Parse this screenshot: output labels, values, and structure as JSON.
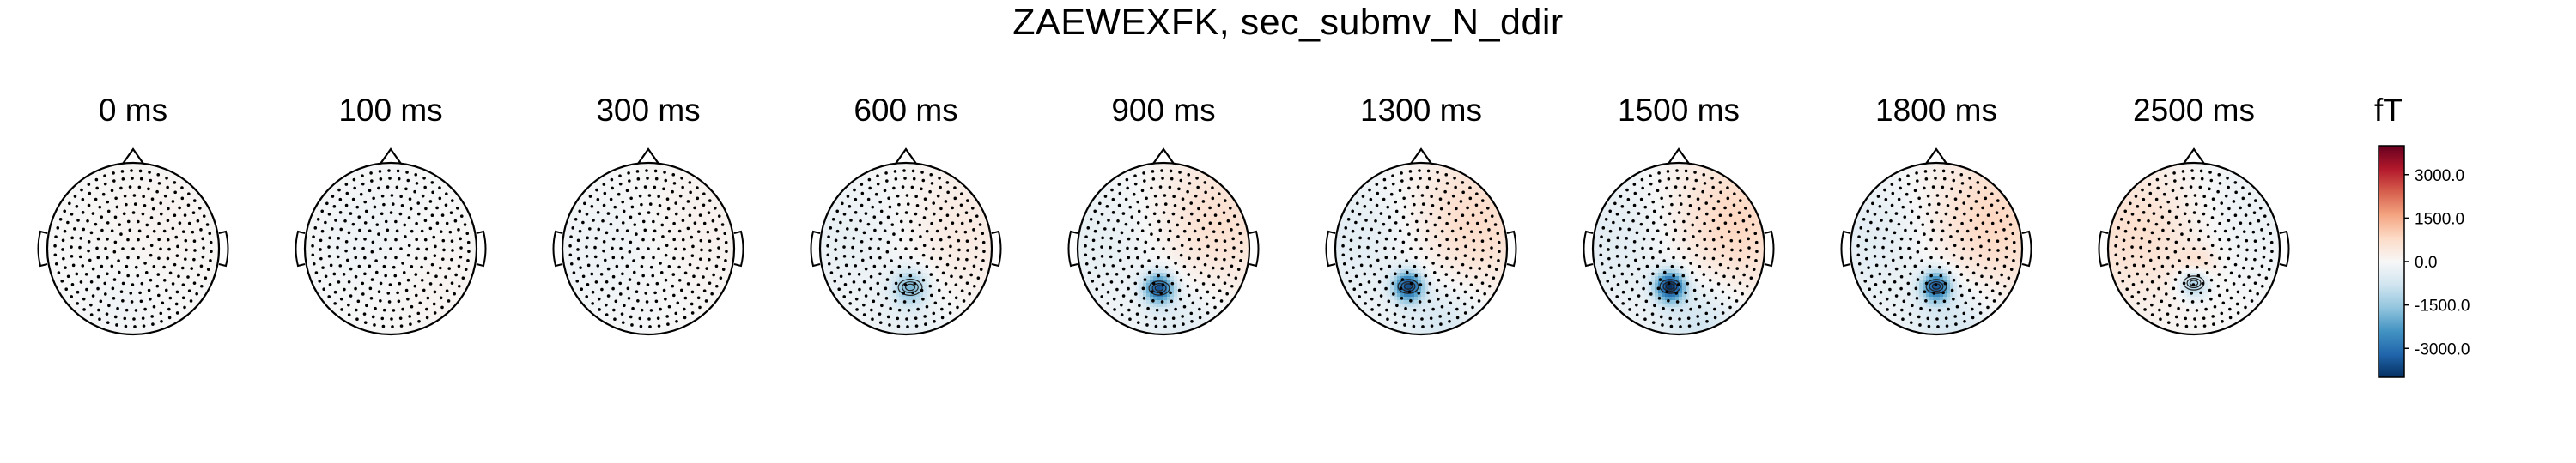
{
  "title": "ZAEWEXFK, sec_submv_N_ddir",
  "chart_data": {
    "type": "heatmap",
    "title": "ZAEWEXFK, sec_submv_N_ddir",
    "panels": [
      {
        "label": "0 ms",
        "time_ms": 0,
        "sources": [
          {
            "x": -0.15,
            "y": -0.6,
            "value": -150,
            "radius": 0.3
          },
          {
            "x": 0.3,
            "y": 0.3,
            "value": 120,
            "radius": 0.5
          }
        ]
      },
      {
        "label": "100 ms",
        "time_ms": 100,
        "sources": [
          {
            "x": -0.2,
            "y": 0.1,
            "value": -200,
            "radius": 0.5
          },
          {
            "x": 0.4,
            "y": -0.3,
            "value": 150,
            "radius": 0.5
          }
        ]
      },
      {
        "label": "300 ms",
        "time_ms": 300,
        "sources": [
          {
            "x": -0.3,
            "y": 0.0,
            "value": -250,
            "radius": 0.6
          },
          {
            "x": 0.45,
            "y": 0.2,
            "value": 250,
            "radius": 0.6
          }
        ]
      },
      {
        "label": "600 ms",
        "time_ms": 600,
        "sources": [
          {
            "x": 0.05,
            "y": -0.45,
            "value": -1700,
            "radius": 0.14
          },
          {
            "x": -0.55,
            "y": 0.1,
            "value": -350,
            "radius": 0.6
          },
          {
            "x": 0.55,
            "y": 0.2,
            "value": 400,
            "radius": 0.6
          },
          {
            "x": 0.1,
            "y": -0.9,
            "value": -350,
            "radius": 0.35
          }
        ]
      },
      {
        "label": "900 ms",
        "time_ms": 900,
        "sources": [
          {
            "x": -0.05,
            "y": -0.46,
            "value": -3300,
            "radius": 0.12
          },
          {
            "x": -0.55,
            "y": 0.1,
            "value": -400,
            "radius": 0.6
          },
          {
            "x": 0.55,
            "y": 0.3,
            "value": 700,
            "radius": 0.6
          },
          {
            "x": 0.2,
            "y": -0.85,
            "value": -500,
            "radius": 0.35
          }
        ]
      },
      {
        "label": "1300 ms",
        "time_ms": 1300,
        "sources": [
          {
            "x": -0.15,
            "y": -0.44,
            "value": -3400,
            "radius": 0.12
          },
          {
            "x": -0.6,
            "y": 0.1,
            "value": -500,
            "radius": 0.6
          },
          {
            "x": 0.55,
            "y": 0.3,
            "value": 800,
            "radius": 0.6
          },
          {
            "x": 0.25,
            "y": -0.85,
            "value": -700,
            "radius": 0.35
          }
        ]
      },
      {
        "label": "1500 ms",
        "time_ms": 1500,
        "sources": [
          {
            "x": -0.1,
            "y": -0.44,
            "value": -3800,
            "radius": 0.12
          },
          {
            "x": -0.6,
            "y": 0.1,
            "value": -500,
            "radius": 0.6
          },
          {
            "x": 0.6,
            "y": 0.3,
            "value": 900,
            "radius": 0.6
          },
          {
            "x": 0.25,
            "y": -0.85,
            "value": -800,
            "radius": 0.35
          }
        ]
      },
      {
        "label": "1800 ms",
        "time_ms": 1800,
        "sources": [
          {
            "x": 0.0,
            "y": -0.44,
            "value": -3200,
            "radius": 0.12
          },
          {
            "x": -0.6,
            "y": 0.1,
            "value": -500,
            "radius": 0.6
          },
          {
            "x": 0.6,
            "y": 0.3,
            "value": 900,
            "radius": 0.6
          },
          {
            "x": 0.2,
            "y": -0.85,
            "value": -700,
            "radius": 0.35
          }
        ]
      },
      {
        "label": "2500 ms",
        "time_ms": 2500,
        "sources": [
          {
            "x": 0.0,
            "y": -0.4,
            "value": -1700,
            "radius": 0.12
          },
          {
            "x": -0.6,
            "y": 0.2,
            "value": 700,
            "radius": 0.6
          },
          {
            "x": 0.5,
            "y": 0.4,
            "value": -300,
            "radius": 0.6
          },
          {
            "x": 0.05,
            "y": -0.2,
            "value": 600,
            "radius": 0.15
          }
        ]
      }
    ],
    "colorbar": {
      "unit": "fT",
      "ticks": [
        "3000.0",
        "1500.0",
        "0.0",
        "-1500.0",
        "-3000.0"
      ],
      "tick_values": [
        3000,
        1500,
        0,
        -1500,
        -3000
      ],
      "vlim": [
        -4000,
        4000
      ],
      "colormap": [
        "#053061",
        "#2166ac",
        "#4393c3",
        "#92c5de",
        "#d1e5f0",
        "#f7f7f7",
        "#fddbc7",
        "#f4a582",
        "#d6604d",
        "#b2182b",
        "#67001f"
      ]
    },
    "xlabel": "",
    "ylabel": "",
    "grid": false
  }
}
